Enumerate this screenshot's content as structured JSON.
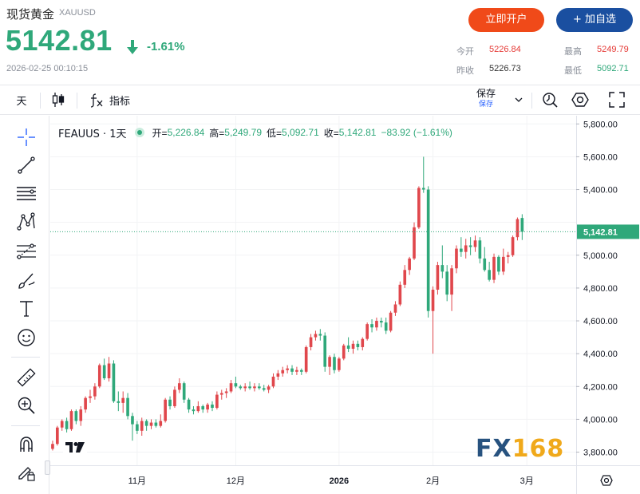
{
  "header": {
    "name": "现货黄金",
    "code": "XAUUSD",
    "price": "5142.81",
    "change_pct": "-1.61%",
    "timestamp": "2026-02-25 00:10:15",
    "open_button": "立即开户",
    "add_button": "+ 加自选",
    "stats": {
      "open_label": "今开",
      "open_value": "5226.84",
      "high_label": "最高",
      "high_value": "5249.79",
      "prev_close_label": "昨收",
      "prev_close_value": "5226.73",
      "low_label": "最低",
      "low_value": "5092.71"
    }
  },
  "toolbar": {
    "interval": "天",
    "indicators_label": "指标",
    "save_label": "保存",
    "save_sub": "保存",
    "icons": [
      "candles-icon",
      "fx-icon",
      "chevron-down-icon",
      "alert-icon",
      "settings-hex-icon",
      "fullscreen-icon"
    ]
  },
  "left_tools": [
    "crosshair-icon",
    "trend-line-icon",
    "horizontal-lines-icon",
    "pattern-icon",
    "fib-icon",
    "brush-icon",
    "text-icon",
    "emoji-icon",
    "ruler-icon",
    "zoom-in-icon",
    "magnet-icon",
    "lock-pencil-icon"
  ],
  "legend": {
    "symbol": "FEAUUS · 1天",
    "open_label": "开=",
    "open_value": "5,226.84",
    "high_label": "高=",
    "high_value": "5,249.79",
    "low_label": "低=",
    "low_value": "5,092.71",
    "close_label": "收=",
    "close_value": "5,142.81",
    "change": "−83.92 (−1.61%)"
  },
  "watermark": {
    "fx": "FX",
    "num": "168"
  },
  "colors": {
    "up": "#2fa87a",
    "down": "#e0474c",
    "accent": "#2962ff",
    "brand_orange": "#f04a19",
    "brand_blue": "#1a4fa0"
  },
  "chart_data": {
    "type": "candlestick",
    "y_axis": {
      "range": [
        3720,
        5850
      ],
      "ticks": [
        3800,
        4000,
        4200,
        4400,
        4600,
        4800,
        5000,
        5200,
        5400,
        5600,
        5800
      ],
      "tick_labels": [
        "3,800.00",
        "4,000.00",
        "4,200.00",
        "4,400.00",
        "4,600.00",
        "4,800.00",
        "5,000.00",
        "5,200.00",
        "5,400.00",
        "5,600.00",
        "5,800.00"
      ],
      "last_price_label": "5,142.81",
      "last_price": 5142.81
    },
    "x_axis": {
      "labels": [
        {
          "text": "11月",
          "index": 18,
          "bold": false
        },
        {
          "text": "12月",
          "index": 39,
          "bold": false
        },
        {
          "text": "2026",
          "index": 61,
          "bold": true
        },
        {
          "text": "2月",
          "index": 81,
          "bold": false
        },
        {
          "text": "3月",
          "index": 101,
          "bold": false
        }
      ]
    },
    "x_range": [
      -0.5,
      111.5
    ],
    "up_color": "#e0474c",
    "down_color": "#2fa87a",
    "candles": [
      [
        3820,
        3870,
        3810,
        3850
      ],
      [
        3850,
        3960,
        3840,
        3950
      ],
      [
        3950,
        4000,
        3930,
        3990
      ],
      [
        3990,
        4010,
        3920,
        3940
      ],
      [
        3940,
        4060,
        3930,
        4050
      ],
      [
        4050,
        4060,
        3970,
        3990
      ],
      [
        3990,
        4080,
        3960,
        4060
      ],
      [
        4060,
        4140,
        4040,
        4130
      ],
      [
        4130,
        4180,
        4100,
        4140
      ],
      [
        4140,
        4220,
        4120,
        4200
      ],
      [
        4200,
        4340,
        4190,
        4330
      ],
      [
        4330,
        4370,
        4240,
        4250
      ],
      [
        4250,
        4380,
        4230,
        4340
      ],
      [
        4340,
        4360,
        4100,
        4110
      ],
      [
        4110,
        4170,
        4050,
        4100
      ],
      [
        4100,
        4170,
        4040,
        4130
      ],
      [
        4130,
        4160,
        4000,
        4020
      ],
      [
        4020,
        4040,
        3870,
        3970
      ],
      [
        3970,
        3990,
        3910,
        3930
      ],
      [
        3930,
        4010,
        3900,
        3990
      ],
      [
        3990,
        4000,
        3930,
        3960
      ],
      [
        3960,
        4000,
        3940,
        3980
      ],
      [
        3980,
        4000,
        3950,
        3960
      ],
      [
        3960,
        4030,
        3950,
        3990
      ],
      [
        3990,
        4130,
        3980,
        4120
      ],
      [
        4120,
        4140,
        4060,
        4080
      ],
      [
        4080,
        4200,
        4070,
        4180
      ],
      [
        4180,
        4250,
        4160,
        4220
      ],
      [
        4220,
        4230,
        4100,
        4120
      ],
      [
        4120,
        4130,
        4040,
        4060
      ],
      [
        4060,
        4080,
        4030,
        4050
      ],
      [
        4050,
        4110,
        4040,
        4080
      ],
      [
        4080,
        4090,
        4040,
        4060
      ],
      [
        4060,
        4100,
        4040,
        4090
      ],
      [
        4090,
        4110,
        4050,
        4070
      ],
      [
        4070,
        4170,
        4060,
        4150
      ],
      [
        4150,
        4180,
        4120,
        4160
      ],
      [
        4160,
        4190,
        4130,
        4170
      ],
      [
        4170,
        4240,
        4160,
        4220
      ],
      [
        4220,
        4260,
        4190,
        4200
      ],
      [
        4200,
        4210,
        4180,
        4190
      ],
      [
        4190,
        4220,
        4170,
        4200
      ],
      [
        4200,
        4230,
        4180,
        4190
      ],
      [
        4190,
        4220,
        4170,
        4200
      ],
      [
        4200,
        4220,
        4180,
        4190
      ],
      [
        4190,
        4210,
        4170,
        4180
      ],
      [
        4180,
        4210,
        4160,
        4200
      ],
      [
        4200,
        4280,
        4190,
        4260
      ],
      [
        4260,
        4300,
        4240,
        4280
      ],
      [
        4280,
        4320,
        4260,
        4300
      ],
      [
        4300,
        4330,
        4280,
        4310
      ],
      [
        4310,
        4330,
        4270,
        4290
      ],
      [
        4290,
        4320,
        4270,
        4300
      ],
      [
        4300,
        4310,
        4270,
        4290
      ],
      [
        4290,
        4450,
        4280,
        4440
      ],
      [
        4440,
        4520,
        4420,
        4500
      ],
      [
        4500,
        4540,
        4480,
        4520
      ],
      [
        4520,
        4550,
        4480,
        4510
      ],
      [
        4510,
        4530,
        4290,
        4320
      ],
      [
        4320,
        4390,
        4270,
        4380
      ],
      [
        4380,
        4400,
        4280,
        4300
      ],
      [
        4300,
        4380,
        4290,
        4370
      ],
      [
        4370,
        4460,
        4360,
        4450
      ],
      [
        4450,
        4500,
        4410,
        4430
      ],
      [
        4430,
        4480,
        4400,
        4460
      ],
      [
        4460,
        4480,
        4420,
        4440
      ],
      [
        4440,
        4500,
        4420,
        4490
      ],
      [
        4490,
        4590,
        4480,
        4580
      ],
      [
        4580,
        4610,
        4530,
        4560
      ],
      [
        4560,
        4620,
        4540,
        4600
      ],
      [
        4600,
        4620,
        4560,
        4590
      ],
      [
        4590,
        4620,
        4520,
        4540
      ],
      [
        4540,
        4660,
        4530,
        4650
      ],
      [
        4650,
        4720,
        4630,
        4700
      ],
      [
        4700,
        4840,
        4690,
        4820
      ],
      [
        4820,
        4940,
        4800,
        4910
      ],
      [
        4910,
        4990,
        4880,
        4980
      ],
      [
        4980,
        5200,
        4970,
        5170
      ],
      [
        5170,
        5420,
        5160,
        5410
      ],
      [
        5410,
        5600,
        5380,
        5400
      ],
      [
        5400,
        5420,
        4620,
        4660
      ],
      [
        4660,
        4810,
        4400,
        4790
      ],
      [
        4790,
        4960,
        4760,
        4940
      ],
      [
        4940,
        5060,
        4860,
        4900
      ],
      [
        4900,
        4940,
        4720,
        4760
      ],
      [
        4760,
        4940,
        4660,
        4920
      ],
      [
        4920,
        5060,
        4890,
        5040
      ],
      [
        5040,
        5110,
        4990,
        5020
      ],
      [
        5020,
        5100,
        4980,
        5060
      ],
      [
        5060,
        5110,
        5000,
        5050
      ],
      [
        5050,
        5120,
        5020,
        5090
      ],
      [
        5090,
        5110,
        4950,
        4980
      ],
      [
        4980,
        5050,
        4900,
        4910
      ],
      [
        4910,
        4960,
        4840,
        4850
      ],
      [
        4850,
        5010,
        4830,
        4990
      ],
      [
        4990,
        5000,
        4880,
        4900
      ],
      [
        4900,
        5040,
        4880,
        4990
      ],
      [
        4990,
        5020,
        4950,
        5000
      ],
      [
        5000,
        5120,
        4990,
        5110
      ],
      [
        5110,
        5230,
        5090,
        5220
      ],
      [
        5226.84,
        5249.79,
        5092.71,
        5142.81
      ]
    ]
  }
}
